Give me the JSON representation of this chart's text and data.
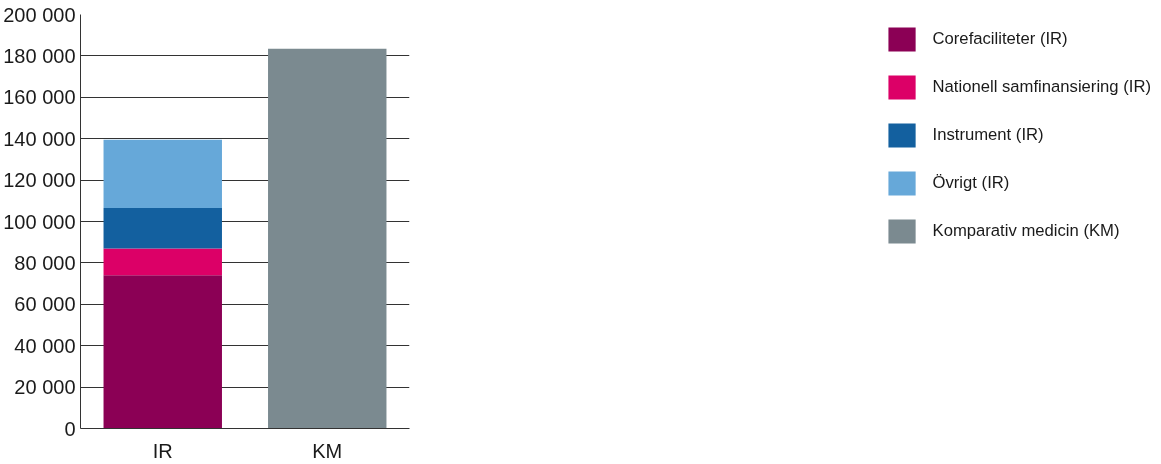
{
  "chart_data": {
    "type": "bar",
    "stacked": true,
    "categories": [
      "IR",
      "KM"
    ],
    "series": [
      {
        "name": "Corefaciliteter (IR)",
        "color": "#8b0055",
        "values": [
          74000,
          null
        ]
      },
      {
        "name": "Nationell samfinansiering (IR)",
        "color": "#dc0067",
        "values": [
          13000,
          null
        ]
      },
      {
        "name": "Instrument (IR)",
        "color": "#13609f",
        "values": [
          19500,
          null
        ]
      },
      {
        "name": "Övrigt (IR)",
        "color": "#66a8d9",
        "values": [
          33000,
          null
        ]
      },
      {
        "name": "Komparativ medicin (KM)",
        "color": "#7b8a90",
        "values": [
          null,
          183500
        ]
      }
    ],
    "ylim": [
      0,
      200000
    ],
    "yticks": [
      {
        "value": 0,
        "label": "0"
      },
      {
        "value": 20000,
        "label": "20 000"
      },
      {
        "value": 40000,
        "label": "40 000"
      },
      {
        "value": 60000,
        "label": "60 000"
      },
      {
        "value": 80000,
        "label": "80 000"
      },
      {
        "value": 100000,
        "label": "100 000"
      },
      {
        "value": 120000,
        "label": "120 000"
      },
      {
        "value": 140000,
        "label": "140 000"
      },
      {
        "value": 160000,
        "label": "160 000"
      },
      {
        "value": 180000,
        "label": "180 000"
      },
      {
        "value": 200000,
        "label": "200 000"
      }
    ],
    "grid": "y",
    "legend": "right"
  }
}
